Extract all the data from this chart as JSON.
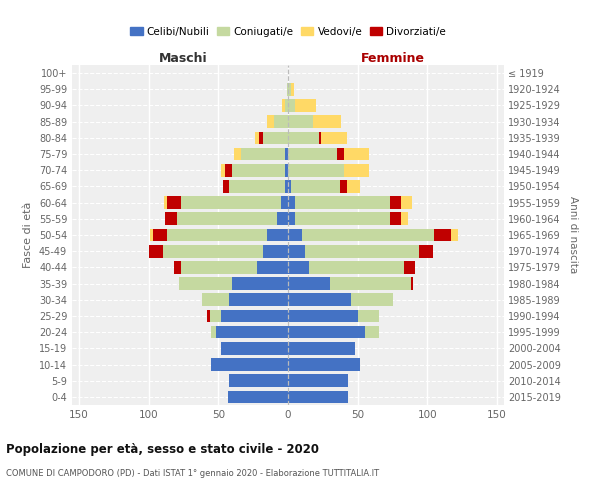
{
  "age_groups": [
    "0-4",
    "5-9",
    "10-14",
    "15-19",
    "20-24",
    "25-29",
    "30-34",
    "35-39",
    "40-44",
    "45-49",
    "50-54",
    "55-59",
    "60-64",
    "65-69",
    "70-74",
    "75-79",
    "80-84",
    "85-89",
    "90-94",
    "95-99",
    "100+"
  ],
  "birth_years": [
    "2015-2019",
    "2010-2014",
    "2005-2009",
    "2000-2004",
    "1995-1999",
    "1990-1994",
    "1985-1989",
    "1980-1984",
    "1975-1979",
    "1970-1974",
    "1965-1969",
    "1960-1964",
    "1955-1959",
    "1950-1954",
    "1945-1949",
    "1940-1944",
    "1935-1939",
    "1930-1934",
    "1925-1929",
    "1920-1924",
    "≤ 1919"
  ],
  "male_celibe": [
    43,
    42,
    55,
    48,
    52,
    48,
    42,
    40,
    22,
    18,
    15,
    8,
    5,
    2,
    2,
    2,
    0,
    0,
    0,
    0,
    0
  ],
  "male_coniugato": [
    0,
    0,
    0,
    0,
    3,
    8,
    20,
    38,
    55,
    72,
    72,
    72,
    72,
    40,
    38,
    32,
    18,
    10,
    2,
    1,
    0
  ],
  "male_vedovo": [
    0,
    0,
    0,
    0,
    0,
    0,
    0,
    0,
    0,
    0,
    2,
    0,
    2,
    0,
    3,
    5,
    3,
    5,
    2,
    0,
    0
  ],
  "male_divorziato": [
    0,
    0,
    0,
    0,
    0,
    2,
    0,
    0,
    5,
    10,
    10,
    8,
    10,
    5,
    5,
    0,
    3,
    0,
    0,
    0,
    0
  ],
  "female_nubile": [
    43,
    43,
    52,
    48,
    55,
    50,
    45,
    30,
    15,
    12,
    10,
    5,
    5,
    2,
    0,
    0,
    0,
    0,
    0,
    0,
    0
  ],
  "female_coniugata": [
    0,
    0,
    0,
    0,
    10,
    15,
    30,
    58,
    68,
    82,
    95,
    68,
    68,
    35,
    40,
    35,
    22,
    18,
    5,
    2,
    0
  ],
  "female_vedova": [
    0,
    0,
    0,
    0,
    0,
    0,
    0,
    0,
    0,
    0,
    5,
    5,
    8,
    10,
    18,
    18,
    18,
    20,
    15,
    2,
    0
  ],
  "female_divorziata": [
    0,
    0,
    0,
    0,
    0,
    0,
    0,
    2,
    8,
    10,
    12,
    8,
    8,
    5,
    0,
    5,
    2,
    0,
    0,
    0,
    0
  ],
  "colors_celibe": "#4472C4",
  "colors_coniugato": "#C5D9A0",
  "colors_vedovo": "#FFD966",
  "colors_divorziato": "#C00000",
  "legend_labels": [
    "Celibi/Nubili",
    "Coniugati/e",
    "Vedovi/e",
    "Divorziati/e"
  ],
  "xlim": 155,
  "title": "Popolazione per età, sesso e stato civile - 2020",
  "subtitle": "COMUNE DI CAMPODORO (PD) - Dati ISTAT 1° gennaio 2020 - Elaborazione TUTTITALIA.IT",
  "ylabel_left": "Fasce di età",
  "ylabel_right": "Anni di nascita",
  "label_maschi": "Maschi",
  "label_femmine": "Femmine",
  "bg_color": "#efefef"
}
